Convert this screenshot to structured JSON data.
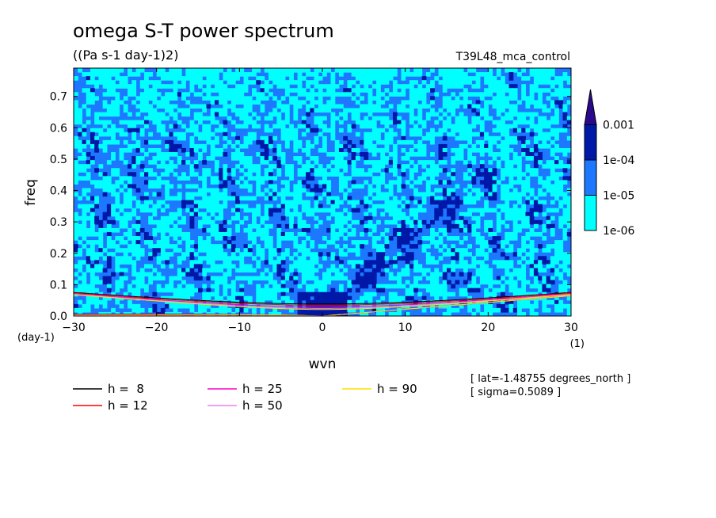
{
  "chart_data": {
    "type": "heatmap",
    "title": "omega S-T power spectrum",
    "subtitle": "((Pa s-1 day-1)2)",
    "run_label": "T39L48_mca_control",
    "xlabel": "wvn",
    "ylabel": "freq",
    "x_unit": "(1)",
    "y_unit": "(day-1)",
    "xlim": [
      -30,
      30
    ],
    "ylim": [
      0,
      0.79
    ],
    "xticks": [
      -30,
      -20,
      -10,
      0,
      10,
      20,
      30
    ],
    "yticks": [
      0,
      0.1,
      0.2,
      0.3,
      0.4,
      0.5,
      0.6,
      0.7
    ],
    "ytick_labels": [
      "0.0",
      "0.1",
      "0.2",
      "0.3",
      "0.4",
      "0.5",
      "0.6",
      "0.7"
    ],
    "colorbar": {
      "levels": [
        "1e-06",
        "1e-05",
        "1e-04",
        "0.001"
      ],
      "colors": [
        "#00ffff",
        "#1e78ff",
        "#0018a8",
        "#2a0a8a"
      ]
    },
    "dispersion_curves": [
      {
        "name": "h =  8",
        "h": 8,
        "color": "#000000"
      },
      {
        "name": "h = 12",
        "h": 12,
        "color": "#ff0000"
      },
      {
        "name": "h = 25",
        "h": 25,
        "color": "#ff00c8"
      },
      {
        "name": "h = 50",
        "h": 50,
        "color": "#ee82ee"
      },
      {
        "name": "h = 90",
        "h": 90,
        "color": "#ffe000"
      }
    ],
    "annotations": [
      "[ lat=-1.48755 degrees_north ]",
      "[ sigma=0.5089 ]"
    ]
  }
}
